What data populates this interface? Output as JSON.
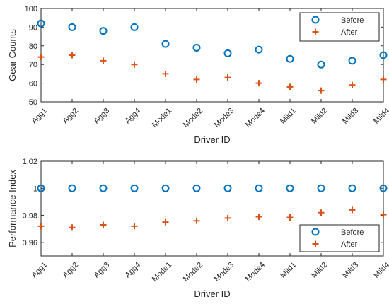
{
  "colors": {
    "before": "#0072BD",
    "after": "#D95319",
    "axis": "#262626"
  },
  "chart_data": [
    {
      "type": "scatter",
      "categories": [
        "Agg1",
        "Agg2",
        "Agg3",
        "Agg4",
        "Mode1",
        "Mode2",
        "Mode3",
        "Mode4",
        "Mild1",
        "Mild2",
        "Mild3",
        "Mild4"
      ],
      "series": [
        {
          "name": "Before",
          "marker": "circle",
          "values": [
            92,
            90,
            88,
            90,
            81,
            79,
            76,
            78,
            73,
            70,
            72,
            75
          ]
        },
        {
          "name": "After",
          "marker": "plus",
          "values": [
            74,
            75,
            72,
            70,
            65,
            62,
            63,
            60,
            58,
            56,
            59,
            62
          ]
        }
      ],
      "xlabel": "Driver ID",
      "ylabel": "Gear Counts",
      "ylim": [
        50,
        100
      ],
      "yticks": [
        "50",
        "60",
        "70",
        "80",
        "90",
        "100"
      ],
      "yticks_values": [
        50,
        60,
        70,
        80,
        90,
        100
      ],
      "grid": false,
      "legend_position": "top-right"
    },
    {
      "type": "scatter",
      "categories": [
        "Agg1",
        "Agg2",
        "Agg3",
        "Agg4",
        "Mode1",
        "Mode2",
        "Mode3",
        "Mode4",
        "Mild1",
        "Mild2",
        "Mild3",
        "Mild4"
      ],
      "series": [
        {
          "name": "Before",
          "marker": "circle",
          "values": [
            1,
            1,
            1,
            1,
            1,
            1,
            1,
            1,
            1,
            1,
            1,
            1
          ]
        },
        {
          "name": "After",
          "marker": "plus",
          "values": [
            0.972,
            0.971,
            0.973,
            0.972,
            0.975,
            0.976,
            0.978,
            0.979,
            0.9785,
            0.982,
            0.984,
            0.9805
          ]
        }
      ],
      "xlabel": "Driver ID",
      "ylabel": "Performance Index",
      "ylim": [
        0.95,
        1.02
      ],
      "yticks": [
        "0.96",
        "0.98",
        "1",
        "1.02"
      ],
      "yticks_values": [
        0.96,
        0.98,
        1,
        1.02
      ],
      "grid": false,
      "legend_position": "bottom-right"
    }
  ]
}
